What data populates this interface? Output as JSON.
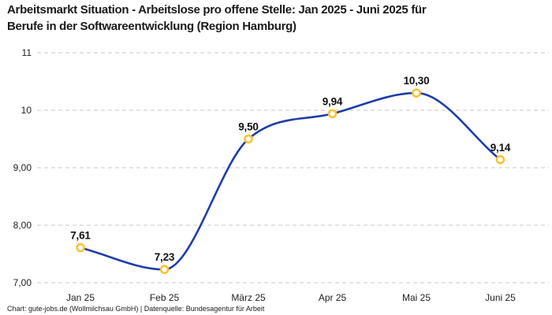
{
  "chart_data": {
    "type": "line",
    "title": "Arbeitsmarkt Situation - Arbeitslose pro offene Stelle: Jan 2025 - Juni 2025 für\nBerufe in der Softwareentwicklung (Region Hamburg)",
    "source_note": "Chart: gute-jobs.de (Wollmilchsau GmbH) | Datenquelle: Bundesagentur für Arbeit",
    "categories": [
      "Jan 25",
      "Feb 25",
      "März 25",
      "Apr 25",
      "Mai 25",
      "Juni 25"
    ],
    "series": [
      {
        "name": "Arbeitslose pro offene Stelle",
        "values": [
          7.61,
          7.23,
          9.5,
          9.94,
          10.3,
          9.14
        ]
      }
    ],
    "point_labels": [
      "7,61",
      "7,23",
      "9,50",
      "9,94",
      "10,30",
      "9,14"
    ],
    "y_ticks": [
      {
        "value": 7,
        "label": "7,00"
      },
      {
        "value": 8,
        "label": "8,00"
      },
      {
        "value": 9,
        "label": "9,00"
      },
      {
        "value": 10,
        "label": "10"
      },
      {
        "value": 11,
        "label": "11"
      }
    ],
    "ylim": [
      7,
      11
    ],
    "xlabel": "",
    "ylabel": "",
    "grid": "horizontal-dashed",
    "legend": "none",
    "colors": {
      "line": "#1e3da8",
      "marker_stroke": "#fcc330",
      "marker_fill": "#ffffff",
      "grid": "#c9c9c9",
      "text": "#1a1a1a"
    }
  }
}
